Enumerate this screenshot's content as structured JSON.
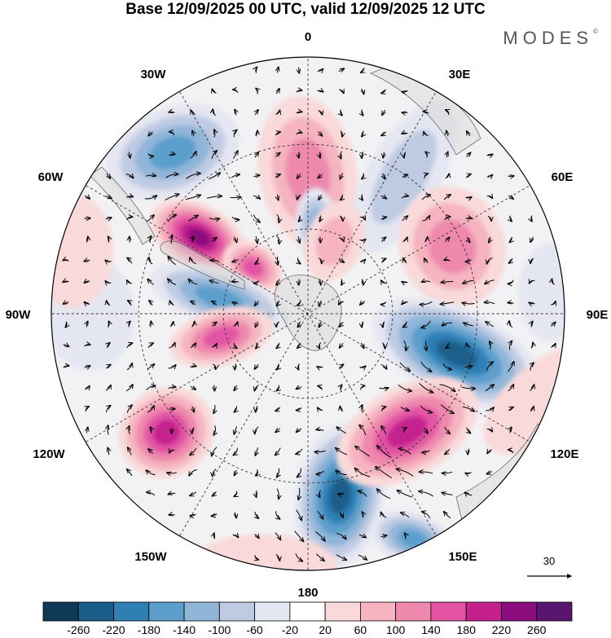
{
  "header": {
    "title": "Base 12/09/2025 00 UTC, valid 12/09/2025 12 UTC",
    "brand": "MODES",
    "brand_mark": "©"
  },
  "map": {
    "projection": "polar stereographic, south pole centred",
    "longitude_labels": {
      "top": "0",
      "top_right": "30E",
      "upper_right": "60E",
      "right": "90E",
      "lower_right": "120E",
      "bottom_right": "150E",
      "bottom": "180",
      "bottom_left": "150W",
      "lower_left": "120W",
      "left": "90W",
      "upper_left": "60W",
      "top_left": "30W"
    },
    "reference_vector": {
      "label": "30"
    }
  },
  "colorbar": {
    "colors": [
      "#0e3a56",
      "#1b5e8a",
      "#2f7fb5",
      "#5c9fcc",
      "#90b5d8",
      "#bfcbe3",
      "#e4e6f1",
      "#ffffff",
      "#f9d9d9",
      "#f5b4c0",
      "#ee88ad",
      "#e354a4",
      "#c4208e",
      "#8c0d7e",
      "#591470"
    ],
    "labels": [
      "-260",
      "-220",
      "-180",
      "-140",
      "-100",
      "-60",
      "-20",
      "20",
      "60",
      "100",
      "140",
      "180",
      "220",
      "260"
    ]
  },
  "anomalies": [
    {
      "lon": 0,
      "r": 0.55,
      "value": 120,
      "rx": 60,
      "ry": 95,
      "rot": -10
    },
    {
      "lon": 5,
      "r": 0.35,
      "value": -140,
      "rx": 25,
      "ry": 45,
      "rot": 0
    },
    {
      "lon": 35,
      "r": 0.65,
      "value": -100,
      "rx": 45,
      "ry": 105,
      "rot": 30
    },
    {
      "lon": -40,
      "r": 0.82,
      "value": -160,
      "rx": 55,
      "ry": 85,
      "rot": 70
    },
    {
      "lon": -55,
      "r": 0.52,
      "value": 240,
      "rx": 65,
      "ry": 40,
      "rot": 30
    },
    {
      "lon": -50,
      "r": 0.28,
      "value": 160,
      "rx": 40,
      "ry": 30,
      "rot": 35
    },
    {
      "lon": -80,
      "r": 0.35,
      "value": -180,
      "rx": 90,
      "ry": 35,
      "rot": 18
    },
    {
      "lon": 65,
      "r": 0.62,
      "value": 140,
      "rx": 65,
      "ry": 75,
      "rot": -20
    },
    {
      "lon": 105,
      "r": 0.6,
      "value": -270,
      "rx": 110,
      "ry": 55,
      "rot": 25
    },
    {
      "lon": -105,
      "r": 0.35,
      "value": 180,
      "rx": 65,
      "ry": 35,
      "rot": -15
    },
    {
      "lon": -130,
      "r": 0.72,
      "value": 220,
      "rx": 60,
      "ry": 55,
      "rot": -30
    },
    {
      "lon": 170,
      "r": 0.72,
      "value": -270,
      "rx": 55,
      "ry": 90,
      "rot": 10
    },
    {
      "lon": 140,
      "r": 0.6,
      "value": 220,
      "rx": 95,
      "ry": 55,
      "rot": -30
    },
    {
      "lon": 155,
      "r": 0.97,
      "value": -180,
      "rx": 55,
      "ry": 32,
      "rot": 20
    },
    {
      "lon": -90,
      "r": 0.85,
      "value": -60,
      "rx": 55,
      "ry": 70,
      "rot": 0
    },
    {
      "lon": 110,
      "r": 0.98,
      "value": 60,
      "rx": 90,
      "ry": 45,
      "rot": -40
    },
    {
      "lon": 85,
      "r": 0.95,
      "value": -40,
      "rx": 40,
      "ry": 60,
      "rot": 0
    },
    {
      "lon": -170,
      "r": 1.0,
      "value": 60,
      "rx": 90,
      "ry": 40,
      "rot": 0
    },
    {
      "lon": -75,
      "r": 0.95,
      "value": 60,
      "rx": 50,
      "ry": 70,
      "rot": 0
    },
    {
      "lon": 20,
      "r": 0.3,
      "value": 80,
      "rx": 35,
      "ry": 50,
      "rot": 20
    }
  ]
}
